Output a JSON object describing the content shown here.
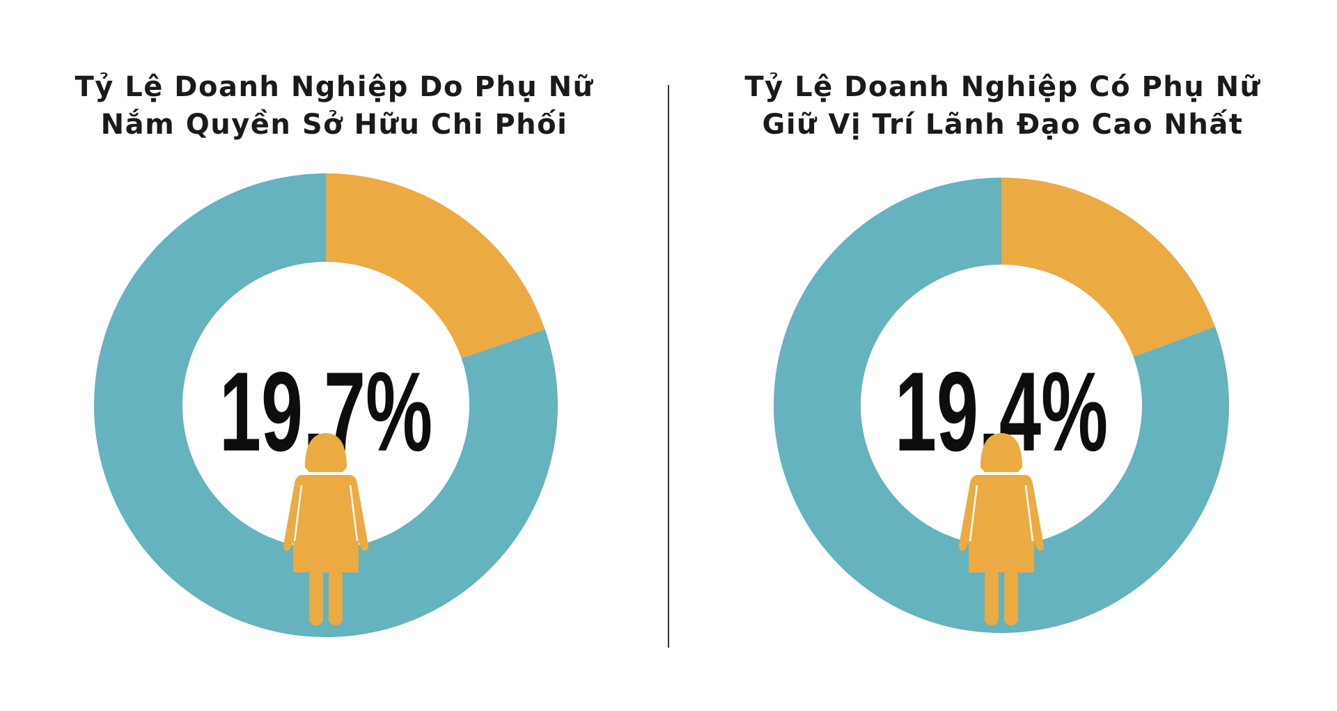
{
  "colors": {
    "teal": "#64B3BF",
    "orange": "#EBAA42",
    "text": "#1a1a1a",
    "hole": "#ffffff"
  },
  "icon": "woman-figure-icon",
  "chart_data": [
    {
      "type": "pie",
      "variant": "donut",
      "title_lines": [
        "Tỷ Lệ Doanh Nghiệp Do Phụ Nữ",
        "Nắm Quyền Sở Hữu Chi Phối"
      ],
      "center_label": "19,7%",
      "slices": [
        {
          "value": 19.7,
          "color": "#EBAA42"
        },
        {
          "value": 80.3,
          "color": "#64B3BF"
        }
      ]
    },
    {
      "type": "pie",
      "variant": "donut",
      "title_lines": [
        "Tỷ Lệ Doanh Nghiệp Có Phụ Nữ",
        "Giữ Vị Trí Lãnh Đạo Cao Nhất"
      ],
      "center_label": "19,4%",
      "slices": [
        {
          "value": 19.4,
          "color": "#EBAA42"
        },
        {
          "value": 80.6,
          "color": "#64B3BF"
        }
      ]
    }
  ]
}
